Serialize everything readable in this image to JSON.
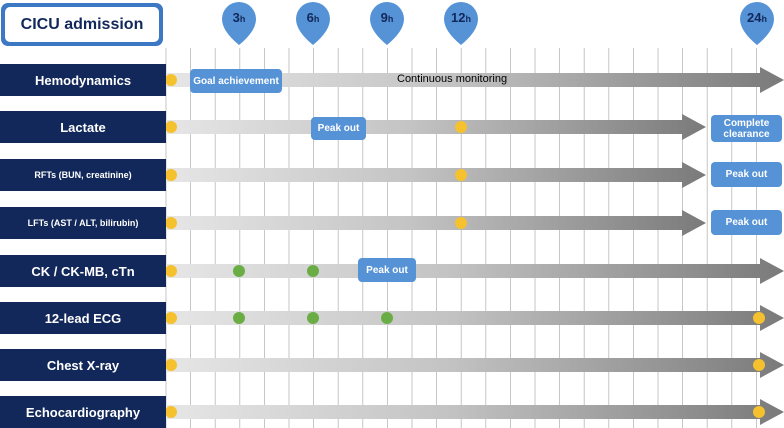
{
  "title": "CICU admission",
  "timepoints": [
    {
      "num": "3",
      "unit": "h"
    },
    {
      "num": "6",
      "unit": "h"
    },
    {
      "num": "9",
      "unit": "h"
    },
    {
      "num": "12",
      "unit": "h"
    },
    {
      "num": "24",
      "unit": "h"
    }
  ],
  "rows": [
    {
      "label": "Hemodynamics",
      "size": "big"
    },
    {
      "label": "Lactate",
      "size": "big"
    },
    {
      "label": "RFTs (BUN, creatinine)",
      "size": "small"
    },
    {
      "label": "LFTs (AST / ALT, bilirubin)",
      "size": "small"
    },
    {
      "label": "CK / CK-MB, cTn",
      "size": "big"
    },
    {
      "label": "12-lead ECG",
      "size": "big"
    },
    {
      "label": "Chest X-ray",
      "size": "big"
    },
    {
      "label": "Echocardiography",
      "size": "big"
    }
  ],
  "callouts": {
    "goal_achievement": "Goal achievement",
    "continuous_monitoring": "Continuous monitoring",
    "lactate_peak_out": "Peak out",
    "lactate_complete_clearance": "Complete clearance",
    "rft_peak_out": "Peak out",
    "lft_peak_out": "Peak out",
    "ck_peak_out": "Peak out"
  },
  "colors": {
    "label_bg": "#12285a",
    "pin": "#5592d6",
    "callout": "#5592d6",
    "dot_yellow": "#f5c12e",
    "dot_green": "#6aad45"
  }
}
